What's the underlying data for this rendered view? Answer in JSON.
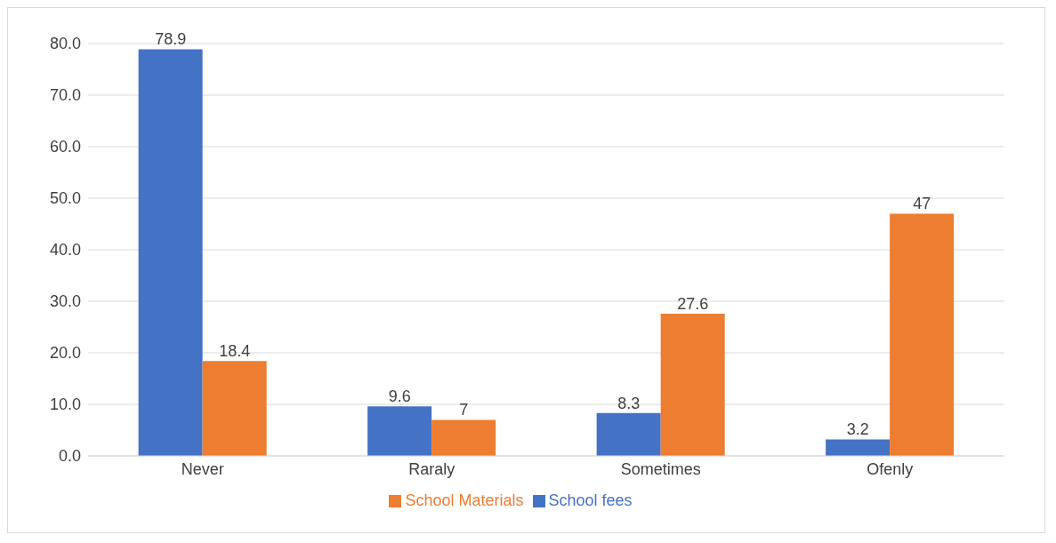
{
  "chart_data": {
    "type": "bar",
    "categories": [
      "Never",
      "Raraly",
      "Sometimes",
      "Ofenly"
    ],
    "series": [
      {
        "name": "School fees",
        "color": "#4472c4",
        "values": [
          78.9,
          9.6,
          8.3,
          3.2
        ]
      },
      {
        "name": "School Materials",
        "color": "#ed7d31",
        "values": [
          18.4,
          7,
          27.6,
          47
        ]
      }
    ],
    "ylim": [
      0,
      80
    ],
    "yticks": [
      {
        "value": 0,
        "label": "0.0"
      },
      {
        "value": 10,
        "label": "10.0"
      },
      {
        "value": 20,
        "label": "20.0"
      },
      {
        "value": 30,
        "label": "30.0"
      },
      {
        "value": 40,
        "label": "40.0"
      },
      {
        "value": 50,
        "label": "50.0"
      },
      {
        "value": 60,
        "label": "60.0"
      },
      {
        "value": 70,
        "label": "70.0"
      },
      {
        "value": 80,
        "label": "80.0"
      }
    ],
    "grid": "y",
    "legend": "bottom",
    "data_labels": true
  }
}
